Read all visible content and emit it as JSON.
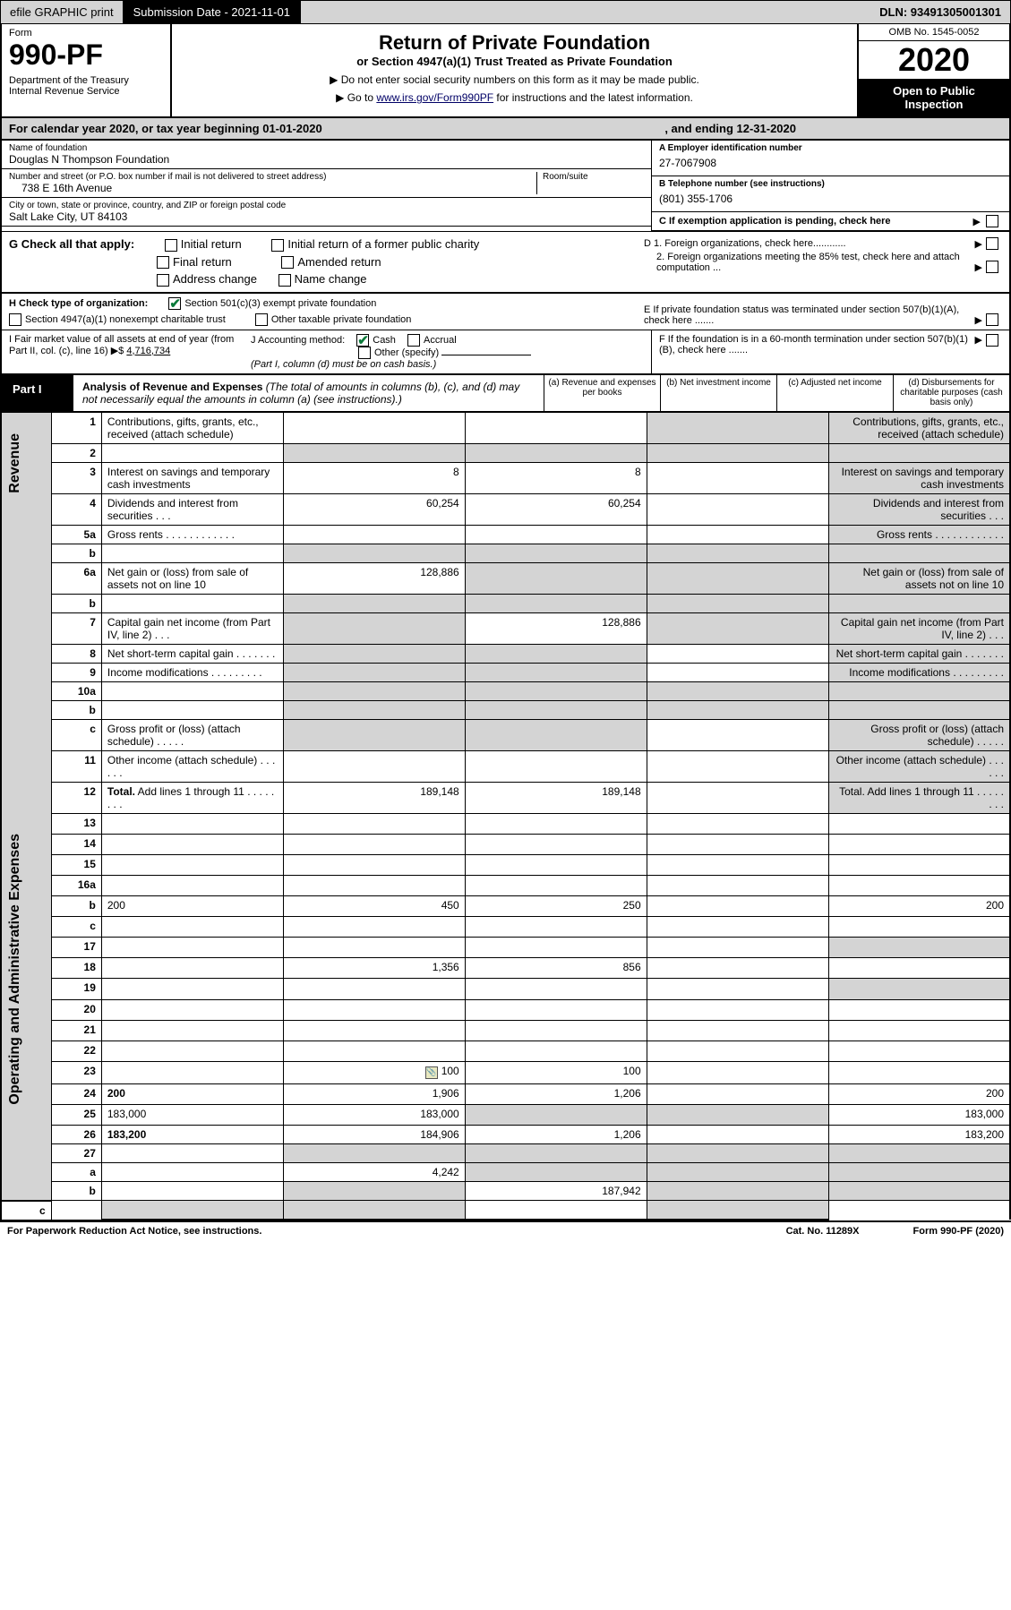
{
  "topbar": {
    "efile": "efile GRAPHIC print",
    "subdate_label": "Submission Date - 2021-11-01",
    "dln": "DLN: 93491305001301"
  },
  "header": {
    "form_label": "Form",
    "form_num": "990-PF",
    "dept": "Department of the Treasury\nInternal Revenue Service",
    "title": "Return of Private Foundation",
    "subtitle": "or Section 4947(a)(1) Trust Treated as Private Foundation",
    "note1": "▶ Do not enter social security numbers on this form as it may be made public.",
    "note2": "▶ Go to ",
    "link": "www.irs.gov/Form990PF",
    "note2b": " for instructions and the latest information.",
    "omb": "OMB No. 1545-0052",
    "year": "2020",
    "open": "Open to Public Inspection"
  },
  "calyear": {
    "text": "For calendar year 2020, or tax year beginning 01-01-2020",
    "ending": ", and ending 12-31-2020"
  },
  "info": {
    "name_lbl": "Name of foundation",
    "name": "Douglas N Thompson Foundation",
    "addr_lbl": "Number and street (or P.O. box number if mail is not delivered to street address)",
    "room_lbl": "Room/suite",
    "addr": "738 E 16th Avenue",
    "city_lbl": "City or town, state or province, country, and ZIP or foreign postal code",
    "city": "Salt Lake City, UT  84103",
    "a_lbl": "A Employer identification number",
    "a_val": "27-7067908",
    "b_lbl": "B Telephone number (see instructions)",
    "b_val": "(801) 355-1706",
    "c_lbl": "C If exemption application is pending, check here"
  },
  "g": {
    "lbl": "G Check all that apply:",
    "initial": "Initial return",
    "final": "Final return",
    "addr": "Address change",
    "initial_former": "Initial return of a former public charity",
    "amended": "Amended return",
    "name": "Name change",
    "d1": "D 1. Foreign organizations, check here............",
    "d2": "2. Foreign organizations meeting the 85% test, check here and attach computation ...",
    "e": "E  If private foundation status was terminated under section 507(b)(1)(A), check here .......",
    "f": "F  If the foundation is in a 60-month termination under section 507(b)(1)(B), check here ......."
  },
  "h": {
    "lbl": "H Check type of organization:",
    "s501": "Section 501(c)(3) exempt private foundation",
    "s4947": "Section 4947(a)(1) nonexempt charitable trust",
    "other": "Other taxable private foundation"
  },
  "i": {
    "lbl": "I Fair market value of all assets at end of year (from Part II, col. (c), line 16) ▶$",
    "val": "4,716,734"
  },
  "j": {
    "lbl": "J Accounting method:",
    "cash": "Cash",
    "accrual": "Accrual",
    "other": "Other (specify)",
    "note": "(Part I, column (d) must be on cash basis.)"
  },
  "part1": {
    "lbl": "Part I",
    "title": "Analysis of Revenue and Expenses",
    "desc": " (The total of amounts in columns (b), (c), and (d) may not necessarily equal the amounts in column (a) (see instructions).)",
    "col_a": "(a)    Revenue and expenses per books",
    "col_b": "(b)   Net investment income",
    "col_c": "(c)   Adjusted net income",
    "col_d": "(d)   Disbursements for charitable purposes (cash basis only)"
  },
  "sides": {
    "rev": "Revenue",
    "exp": "Operating and Administrative Expenses"
  },
  "rows": [
    {
      "n": "1",
      "d": "Contributions, gifts, grants, etc., received (attach schedule)",
      "a": "",
      "b": "",
      "c": "",
      "g": [
        false,
        false,
        true,
        true
      ]
    },
    {
      "n": "2",
      "d": "",
      "a": "",
      "b": "",
      "c": "",
      "g": [
        true,
        true,
        true,
        true
      ],
      "bold": false,
      "check": true
    },
    {
      "n": "3",
      "d": "Interest on savings and temporary cash investments",
      "a": "8",
      "b": "8",
      "c": "",
      "g": [
        false,
        false,
        false,
        true
      ]
    },
    {
      "n": "4",
      "d": "Dividends and interest from securities   .  .  .",
      "a": "60,254",
      "b": "60,254",
      "c": "",
      "g": [
        false,
        false,
        false,
        true
      ]
    },
    {
      "n": "5a",
      "d": "Gross rents   .  .  .  .  .  .  .  .  .  .  .  .",
      "a": "",
      "b": "",
      "c": "",
      "g": [
        false,
        false,
        false,
        true
      ]
    },
    {
      "n": "b",
      "d": "",
      "a": "",
      "b": "",
      "c": "",
      "g": [
        true,
        true,
        true,
        true
      ]
    },
    {
      "n": "6a",
      "d": "Net gain or (loss) from sale of assets not on line 10",
      "a": "128,886",
      "b": "",
      "c": "",
      "g": [
        false,
        true,
        true,
        true
      ]
    },
    {
      "n": "b",
      "d": "",
      "a": "",
      "b": "",
      "c": "",
      "g": [
        true,
        true,
        true,
        true
      ]
    },
    {
      "n": "7",
      "d": "Capital gain net income (from Part IV, line 2)   .  .  .",
      "a": "",
      "b": "128,886",
      "c": "",
      "g": [
        true,
        false,
        true,
        true
      ]
    },
    {
      "n": "8",
      "d": "Net short-term capital gain   .  .  .  .  .  .  .",
      "a": "",
      "b": "",
      "c": "",
      "g": [
        true,
        true,
        false,
        true
      ]
    },
    {
      "n": "9",
      "d": "Income modifications   .  .  .  .  .  .  .  .  .",
      "a": "",
      "b": "",
      "c": "",
      "g": [
        true,
        true,
        false,
        true
      ]
    },
    {
      "n": "10a",
      "d": "",
      "a": "",
      "b": "",
      "c": "",
      "g": [
        true,
        true,
        true,
        true
      ]
    },
    {
      "n": "b",
      "d": "",
      "a": "",
      "b": "",
      "c": "",
      "g": [
        true,
        true,
        true,
        true
      ]
    },
    {
      "n": "c",
      "d": "Gross profit or (loss) (attach schedule)   .  .  .  .  .",
      "a": "",
      "b": "",
      "c": "",
      "g": [
        true,
        true,
        false,
        true
      ]
    },
    {
      "n": "11",
      "d": "Other income (attach schedule)   .  .  .  .  .  .",
      "a": "",
      "b": "",
      "c": "",
      "g": [
        false,
        false,
        false,
        true
      ]
    },
    {
      "n": "12",
      "d": "Total. Add lines 1 through 11   .  .  .  .  .  .  .  .",
      "a": "189,148",
      "b": "189,148",
      "c": "",
      "g": [
        false,
        false,
        false,
        true
      ],
      "bold": true
    },
    {
      "n": "13",
      "d": "",
      "a": "",
      "b": "",
      "c": "",
      "g": [
        false,
        false,
        false,
        false
      ]
    },
    {
      "n": "14",
      "d": "",
      "a": "",
      "b": "",
      "c": "",
      "g": [
        false,
        false,
        false,
        false
      ]
    },
    {
      "n": "15",
      "d": "",
      "a": "",
      "b": "",
      "c": "",
      "g": [
        false,
        false,
        false,
        false
      ]
    },
    {
      "n": "16a",
      "d": "",
      "a": "",
      "b": "",
      "c": "",
      "g": [
        false,
        false,
        false,
        false
      ]
    },
    {
      "n": "b",
      "d": "200",
      "a": "450",
      "b": "250",
      "c": "",
      "g": [
        false,
        false,
        false,
        false
      ]
    },
    {
      "n": "c",
      "d": "",
      "a": "",
      "b": "",
      "c": "",
      "g": [
        false,
        false,
        false,
        false
      ]
    },
    {
      "n": "17",
      "d": "",
      "a": "",
      "b": "",
      "c": "",
      "g": [
        false,
        false,
        false,
        true
      ]
    },
    {
      "n": "18",
      "d": "",
      "a": "1,356",
      "b": "856",
      "c": "",
      "g": [
        false,
        false,
        false,
        false
      ]
    },
    {
      "n": "19",
      "d": "",
      "a": "",
      "b": "",
      "c": "",
      "g": [
        false,
        false,
        false,
        true
      ]
    },
    {
      "n": "20",
      "d": "",
      "a": "",
      "b": "",
      "c": "",
      "g": [
        false,
        false,
        false,
        false
      ]
    },
    {
      "n": "21",
      "d": "",
      "a": "",
      "b": "",
      "c": "",
      "g": [
        false,
        false,
        false,
        false
      ]
    },
    {
      "n": "22",
      "d": "",
      "a": "",
      "b": "",
      "c": "",
      "g": [
        false,
        false,
        false,
        false
      ]
    },
    {
      "n": "23",
      "d": "",
      "a": "100",
      "b": "100",
      "c": "",
      "g": [
        false,
        false,
        false,
        false
      ],
      "icon": true
    },
    {
      "n": "24",
      "d": "200",
      "a": "1,906",
      "b": "1,206",
      "c": "",
      "g": [
        false,
        false,
        false,
        false
      ],
      "bold": true
    },
    {
      "n": "25",
      "d": "183,000",
      "a": "183,000",
      "b": "",
      "c": "",
      "g": [
        false,
        true,
        true,
        false
      ]
    },
    {
      "n": "26",
      "d": "183,200",
      "a": "184,906",
      "b": "1,206",
      "c": "",
      "g": [
        false,
        false,
        false,
        false
      ],
      "bold": true
    },
    {
      "n": "27",
      "d": "",
      "a": "",
      "b": "",
      "c": "",
      "g": [
        true,
        true,
        true,
        true
      ]
    },
    {
      "n": "a",
      "d": "",
      "a": "4,242",
      "b": "",
      "c": "",
      "g": [
        false,
        true,
        true,
        true
      ],
      "bold": true
    },
    {
      "n": "b",
      "d": "",
      "a": "",
      "b": "187,942",
      "c": "",
      "g": [
        true,
        false,
        true,
        true
      ],
      "bold": true
    },
    {
      "n": "c",
      "d": "",
      "a": "",
      "b": "",
      "c": "",
      "g": [
        true,
        true,
        false,
        true
      ],
      "bold": true
    }
  ],
  "footer": {
    "l": "For Paperwork Reduction Act Notice, see instructions.",
    "c": "Cat. No. 11289X",
    "r": "Form 990-PF (2020)"
  }
}
